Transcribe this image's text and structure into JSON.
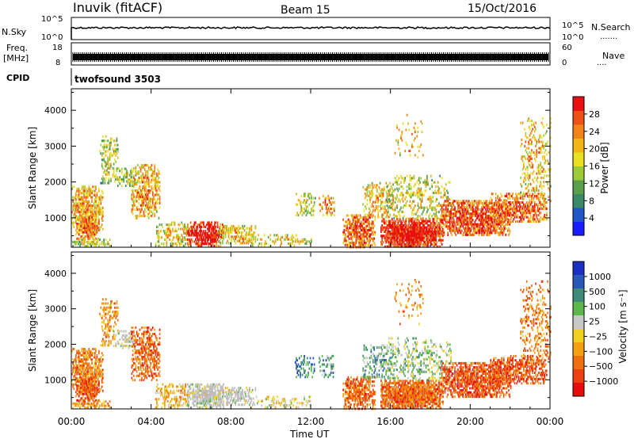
{
  "header": {
    "station": "Inuvik (fitACF)",
    "beam": "Beam 15",
    "date": "15/Oct/2016"
  },
  "colors": {
    "power_scale": [
      "#1a1aff",
      "#2156c8",
      "#3a8a6a",
      "#5aa04a",
      "#9ccb3a",
      "#e8e020",
      "#f5b416",
      "#f08418",
      "#ec5216",
      "#e81010"
    ],
    "velocity_scale": [
      "#1a30c0",
      "#2a58b8",
      "#3f8a78",
      "#5cb84a",
      "#c8c8c8",
      "#f0d020",
      "#f5a010",
      "#f07010",
      "#ec4010",
      "#e80c0c"
    ],
    "ground_scatter": "#bdbdbd"
  },
  "chart_data": [
    {
      "type": "line",
      "panel": "noise",
      "left_label": "N.Sky",
      "right_label": "N.Search",
      "yticks_left": [
        "10^5",
        "10^0"
      ],
      "yticks_right": [
        "10^5",
        "10^0"
      ],
      "right_legend": "......."
    },
    {
      "type": "line",
      "panel": "frequency",
      "left_label": "Freq.",
      "left_unit": "[MHz]",
      "right_label": "Nave",
      "yticks_left": [
        "18",
        "8"
      ],
      "yticks_right": [
        "60",
        "0"
      ],
      "right_legend": "...."
    },
    {
      "type": "table",
      "panel": "cpid",
      "label": "CPID",
      "program": "twofsound 3503"
    },
    {
      "type": "heatmap",
      "panel": "power",
      "ylabel": "Slant Range [km]",
      "ylim": [
        180,
        4600
      ],
      "yticks": [
        "1000",
        "2000",
        "3000",
        "4000"
      ],
      "colorbar_label": "Power [dB]",
      "colorbar_ticks": [
        "4",
        "8",
        "12",
        "16",
        "20",
        "24",
        "28"
      ],
      "colorbar_range": [
        0,
        32
      ]
    },
    {
      "type": "heatmap",
      "panel": "velocity",
      "ylabel": "Slant Range [km]",
      "ylim": [
        180,
        4600
      ],
      "yticks": [
        "1000",
        "2000",
        "3000",
        "4000"
      ],
      "colorbar_label": "Velocity [m s⁻¹]",
      "colorbar_ticks": [
        "1000",
        "500",
        "100",
        "25",
        "−25",
        "−100",
        "−500",
        "−1000"
      ]
    }
  ],
  "time_axis": {
    "xlabel": "Time UT",
    "ticks": [
      "00:00",
      "04:00",
      "08:00",
      "12:00",
      "16:00",
      "20:00",
      "00:00"
    ]
  }
}
